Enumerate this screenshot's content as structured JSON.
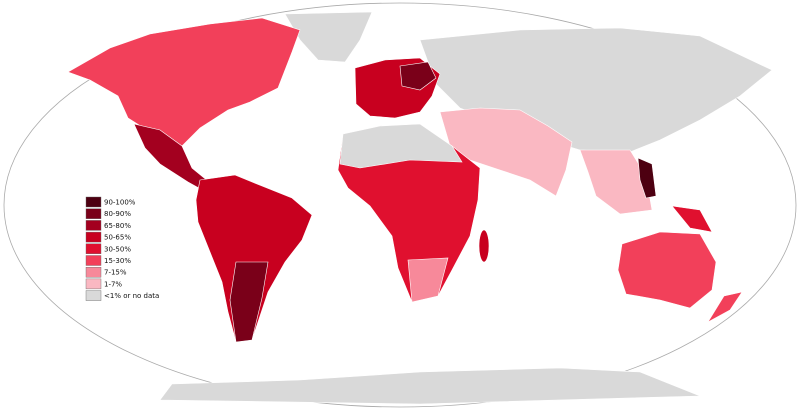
{
  "legend": {
    "items": [
      {
        "label": "90-100%",
        "color": "#4d0011"
      },
      {
        "label": "80-90%",
        "color": "#7a0019"
      },
      {
        "label": "65-80%",
        "color": "#a3001f"
      },
      {
        "label": "50-65%",
        "color": "#c8001f"
      },
      {
        "label": "30-50%",
        "color": "#e0102f"
      },
      {
        "label": "15-30%",
        "color": "#f2405a"
      },
      {
        "label": "7-15%",
        "color": "#f7899a"
      },
      {
        "label": "1-7%",
        "color": "#fab8c2"
      },
      {
        "label": "<1% or no data",
        "color": "#d9d9d9"
      }
    ]
  }
}
